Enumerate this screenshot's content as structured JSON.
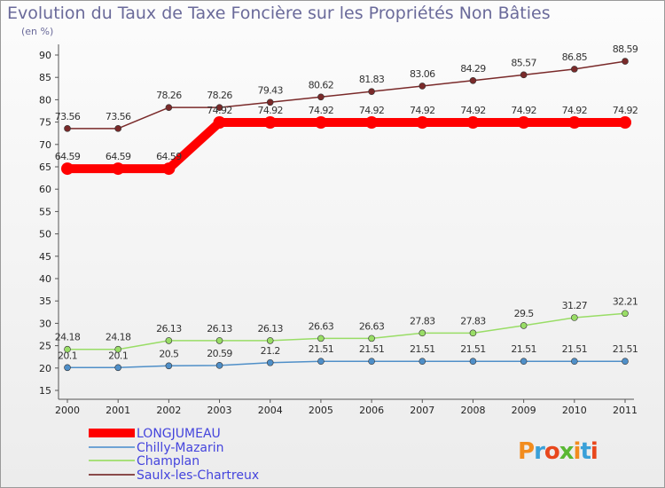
{
  "title": "Evolution du Taux de Taxe Foncière sur les Propriétés Non Bâties",
  "unit_label": "(en %)",
  "brand": "Proxiti",
  "chart_data": {
    "type": "line",
    "x": [
      "2000",
      "2001",
      "2002",
      "2003",
      "2004",
      "2005",
      "2006",
      "2007",
      "2008",
      "2009",
      "2010",
      "2011"
    ],
    "ylim": [
      15,
      90
    ],
    "yticks": [
      15,
      20,
      25,
      30,
      35,
      40,
      45,
      50,
      55,
      60,
      65,
      70,
      75,
      80,
      85,
      90
    ],
    "grid": false,
    "legend_position": "bottom-left",
    "series": [
      {
        "name": "LONGJUMEAU",
        "color": "#ff0000",
        "values": [
          64.59,
          64.59,
          64.59,
          74.92,
          74.92,
          74.92,
          74.92,
          74.92,
          74.92,
          74.92,
          74.92,
          74.92
        ],
        "labels": [
          "64.59",
          "64.59",
          "64.59",
          "74.92",
          "74.92",
          "74.92",
          "74.92",
          "74.92",
          "74.92",
          "74.92",
          "74.92",
          "74.92"
        ]
      },
      {
        "name": "Chilly-Mazarin",
        "color": "#4f8fc8",
        "values": [
          20.1,
          20.1,
          20.5,
          20.59,
          21.2,
          21.51,
          21.51,
          21.51,
          21.51,
          21.51,
          21.51,
          21.51
        ],
        "labels": [
          "20.1",
          "20.1",
          "20.5",
          "20.59",
          "21.2",
          "21.51",
          "21.51",
          "21.51",
          "21.51",
          "21.51",
          "21.51",
          "21.51"
        ]
      },
      {
        "name": "Champlan",
        "color": "#99dd66",
        "values": [
          24.18,
          24.18,
          26.13,
          26.13,
          26.13,
          26.63,
          26.63,
          27.83,
          27.83,
          29.5,
          31.27,
          32.21
        ],
        "labels": [
          "24.18",
          "24.18",
          "26.13",
          "26.13",
          "26.13",
          "26.63",
          "26.63",
          "27.83",
          "27.83",
          "29.5",
          "31.27",
          "32.21"
        ]
      },
      {
        "name": "Saulx-les-Chartreux",
        "color": "#7a2a2a",
        "values": [
          73.56,
          73.56,
          78.26,
          78.26,
          79.43,
          80.62,
          81.83,
          83.06,
          84.29,
          85.57,
          86.85,
          88.59
        ],
        "labels": [
          "73.56",
          "73.56",
          "78.26",
          "78.26",
          "79.43",
          "80.62",
          "81.83",
          "83.06",
          "84.29",
          "85.57",
          "86.85",
          "88.59"
        ]
      }
    ]
  }
}
